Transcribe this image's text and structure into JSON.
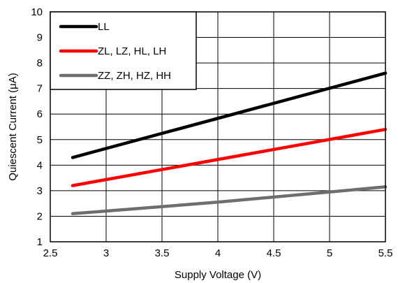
{
  "chart_data": {
    "type": "line",
    "xlabel": "Supply Voltage (V)",
    "ylabel": "Quiescent Current (μA)",
    "xlim": [
      2.5,
      5.5
    ],
    "ylim": [
      1,
      10
    ],
    "xticks": [
      "2.5",
      "3",
      "3.5",
      "4",
      "4.5",
      "5",
      "5.5"
    ],
    "yticks": [
      "1",
      "2",
      "3",
      "4",
      "5",
      "6",
      "7",
      "8",
      "9",
      "10"
    ],
    "grid": true,
    "legend_position": "top-left",
    "series": [
      {
        "name": "LL",
        "color": "#000000",
        "x": [
          2.7,
          5.5
        ],
        "y": [
          4.3,
          7.6
        ]
      },
      {
        "name": "ZL, LZ, HL, LH",
        "color": "#ff0000",
        "x": [
          2.7,
          5.5
        ],
        "y": [
          3.2,
          5.4
        ]
      },
      {
        "name": "ZZ, ZH, HZ, HH",
        "color": "#6e6e6e",
        "x": [
          2.7,
          4.0,
          5.5
        ],
        "y": [
          2.1,
          2.55,
          3.15
        ]
      }
    ]
  }
}
